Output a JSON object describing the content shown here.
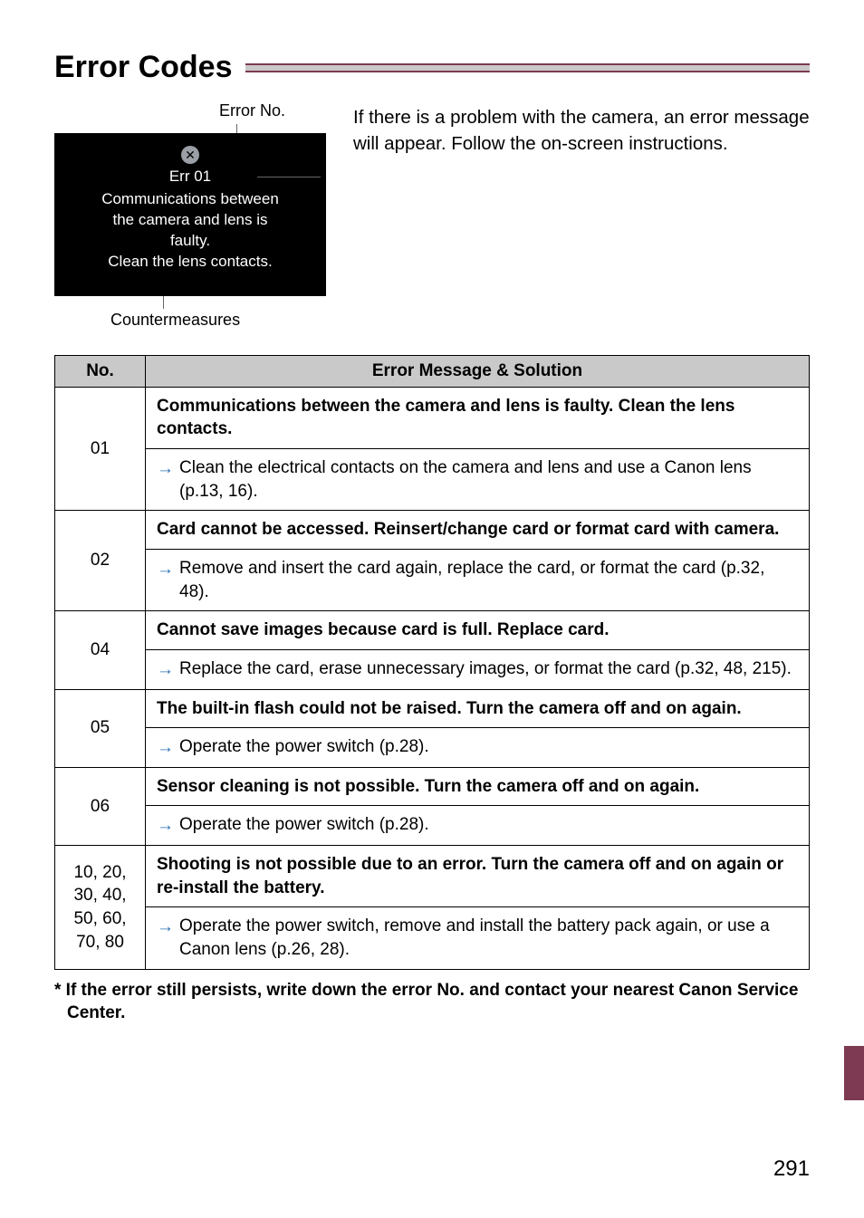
{
  "page": {
    "title": "Error Codes",
    "error_no_label": "Error No.",
    "countermeasures_label": "Countermeasures",
    "intro": "If there is a problem with the camera, an error message will appear. Follow the on-screen instructions.",
    "footnote": "* If the error still persists, write down the error No. and contact your nearest Canon Service Center.",
    "page_number": "291"
  },
  "screenshot": {
    "background_color": "#000000",
    "text_color": "#ffffff",
    "err_code": "Err 01",
    "msg_line1": "Communications between",
    "msg_line2": "the camera and lens is",
    "msg_line3": "faulty.",
    "msg_line4": "Clean the lens contacts."
  },
  "colors": {
    "accent": "#7d3a52",
    "header_bg": "#c9c9c9",
    "arrow": "#2a6fb5"
  },
  "table": {
    "header_no": "No.",
    "header_msg": "Error Message & Solution",
    "rows": [
      {
        "no": "01",
        "message": "Communications between the camera and lens is faulty. Clean the lens contacts.",
        "solution": "Clean the electrical contacts on the camera and lens and use a Canon lens (p.13, 16)."
      },
      {
        "no": "02",
        "message": "Card cannot be accessed. Reinsert/change card or format card with camera.",
        "solution": "Remove and insert the card again, replace the card, or format the card (p.32, 48)."
      },
      {
        "no": "04",
        "message": "Cannot save images because card is full. Replace card.",
        "solution": "Replace the card, erase unnecessary images, or format the card (p.32, 48, 215)."
      },
      {
        "no": "05",
        "message": "The built-in flash could not be raised. Turn the camera off and on again.",
        "solution": "Operate the power switch (p.28)."
      },
      {
        "no": "06",
        "message": "Sensor cleaning is not possible. Turn the camera off and on again.",
        "solution": "Operate the power switch (p.28)."
      },
      {
        "no": "10, 20,\n30, 40,\n50, 60,\n70, 80",
        "message": "Shooting is not possible due to an error. Turn the camera off and on again or re-install the battery.",
        "solution": "Operate the power switch, remove and install the battery pack again, or use a Canon lens (p.26, 28)."
      }
    ]
  }
}
